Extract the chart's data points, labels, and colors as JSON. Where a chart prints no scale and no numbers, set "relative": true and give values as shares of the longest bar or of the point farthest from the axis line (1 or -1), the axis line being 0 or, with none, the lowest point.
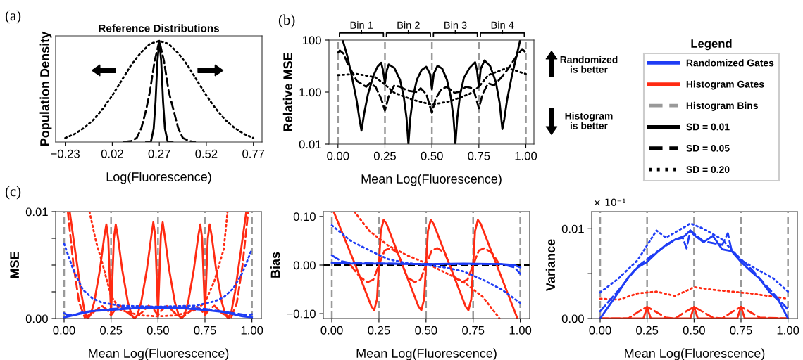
{
  "chart_data": [
    {
      "type": "line",
      "title": "Reference Distributions",
      "ylabel": "Population Density",
      "xlabel": "Log(Fluorescence)",
      "annotations": [
        "(a)"
      ],
      "relative": true,
      "xlim": [
        -0.281,
        0.816
      ],
      "xticks": [
        {
          "value": -0.23,
          "label": "−0.23"
        },
        0.02,
        0.27,
        0.52,
        0.77
      ],
      "series": [
        {
          "color": "#000000",
          "line_style": "solid",
          "x": [
            0.2,
            0.225,
            0.24,
            0.25,
            0.26,
            0.27,
            0.28,
            0.29,
            0.3,
            0.315,
            0.34
          ],
          "values": [
            0,
            0,
            0.13,
            0.4,
            0.8,
            1,
            0.8,
            0.4,
            0.13,
            0,
            0
          ]
        },
        {
          "color": "#000000",
          "line_style": "dashed",
          "x": [
            0.08,
            0.12,
            0.15,
            0.175,
            0.2,
            0.22,
            0.245,
            0.27,
            0.295,
            0.32,
            0.345,
            0.37,
            0.395,
            0.43,
            0.46
          ],
          "values": [
            0,
            0.01,
            0.04,
            0.14,
            0.32,
            0.5,
            0.8,
            1,
            0.8,
            0.5,
            0.32,
            0.14,
            0.04,
            0.01,
            0
          ]
        },
        {
          "color": "#000000",
          "line_style": "dotted",
          "x": [
            -0.23,
            -0.18,
            -0.13,
            -0.08,
            -0.03,
            0.02,
            0.07,
            0.12,
            0.17,
            0.22,
            0.27,
            0.32,
            0.37,
            0.42,
            0.47,
            0.52,
            0.57,
            0.62,
            0.67,
            0.72,
            0.77
          ],
          "values": [
            0.04,
            0.08,
            0.14,
            0.22,
            0.33,
            0.46,
            0.61,
            0.76,
            0.88,
            0.97,
            1,
            0.97,
            0.88,
            0.76,
            0.61,
            0.46,
            0.33,
            0.22,
            0.14,
            0.08,
            0.04
          ]
        }
      ]
    },
    {
      "type": "line",
      "log": true,
      "ylabel": "Relative MSE",
      "xlabel": "Mean Log(Fluorescence)",
      "annotations": [
        "(b)",
        "Bin 1",
        "Bin 2",
        "Bin 3",
        "Bin 4",
        "Randomized\nis better",
        "Histogram\nis better"
      ],
      "xlim": [
        -0.048,
        1.043
      ],
      "xticks": [
        {
          "value": 0,
          "label": "0.00"
        },
        0.25,
        {
          "value": 0.5,
          "label": "0.50"
        },
        0.75,
        {
          "value": 1,
          "label": "1.00"
        }
      ],
      "ylim": [
        0.01,
        100
      ],
      "yticks": [
        0.01,
        {
          "value": 1,
          "label": "1.00"
        },
        100
      ],
      "ref_lines": [
        {
          "axis": "x",
          "value": 0,
          "color": "#999999",
          "line_style": "dashed"
        },
        {
          "axis": "x",
          "value": 0.25,
          "color": "#999999",
          "line_style": "dashed"
        },
        {
          "axis": "x",
          "value": 0.5,
          "color": "#999999",
          "line_style": "dashed"
        },
        {
          "axis": "x",
          "value": 0.75,
          "color": "#999999",
          "line_style": "dashed"
        },
        {
          "axis": "x",
          "value": 1,
          "color": "#999999",
          "line_style": "dashed"
        }
      ],
      "series": [
        {
          "color": "#000000",
          "line_style": "solid",
          "x": [
            0.025,
            0.05,
            0.075,
            0.1,
            0.115,
            0.125,
            0.14,
            0.16,
            0.19,
            0.21,
            0.23,
            0.24,
            0.25,
            0.26,
            0.27,
            0.3,
            0.33,
            0.35,
            0.365,
            0.375,
            0.385,
            0.4,
            0.42,
            0.445,
            0.47,
            0.49,
            0.5,
            0.51,
            0.53,
            0.555,
            0.58,
            0.6,
            0.615,
            0.625,
            0.635,
            0.65,
            0.67,
            0.7,
            0.73,
            0.74,
            0.75,
            0.76,
            0.78,
            0.81,
            0.84,
            0.86,
            0.875,
            0.885,
            0.9,
            0.925,
            0.95,
            0.97
          ],
          "values": [
            100,
            24,
            3.7,
            0.45,
            0.085,
            0.033,
            0.16,
            0.85,
            4.5,
            9.4,
            13.4,
            6.9,
            2.2,
            6.9,
            11.6,
            8.5,
            3,
            0.69,
            0.1,
            0.01,
            0.1,
            0.69,
            3,
            7,
            9.4,
            5,
            1.3,
            5,
            10.4,
            8,
            3,
            0.69,
            0.1,
            0.01,
            0.1,
            0.8,
            3.5,
            8.5,
            14,
            7,
            1.6,
            8,
            16.5,
            10,
            2.5,
            0.4,
            0.038,
            0.09,
            0.5,
            4,
            24,
            100
          ]
        },
        {
          "color": "#000000",
          "line_style": "dashed",
          "x": [
            0,
            0.01,
            0.03,
            0.05,
            0.1,
            0.15,
            0.17,
            0.2,
            0.23,
            0.25,
            0.27,
            0.3,
            0.33,
            0.37,
            0.42,
            0.44,
            0.47,
            0.5,
            0.52,
            0.55,
            0.58,
            0.62,
            0.65,
            0.68,
            0.72,
            0.75,
            0.77,
            0.8,
            0.83,
            0.87,
            0.9,
            0.95,
            0.98,
            1.0
          ],
          "values": [
            33,
            40,
            30,
            13,
            2.7,
            1.6,
            2.2,
            1.6,
            0.56,
            0.195,
            0.69,
            1.8,
            1.6,
            1.15,
            1.0,
            1.4,
            0.85,
            0.16,
            0.56,
            1.3,
            1.6,
            0.94,
            1.04,
            1.6,
            1.4,
            0.24,
            0.85,
            2.2,
            1.8,
            3.7,
            6.9,
            24,
            45,
            33
          ]
        },
        {
          "color": "#000000",
          "line_style": "dotted",
          "x": [
            0,
            0.1,
            0.2,
            0.25,
            0.3,
            0.4,
            0.5,
            0.6,
            0.7,
            0.75,
            0.8,
            0.9,
            1.0
          ],
          "values": [
            4.5,
            5,
            3.7,
            1.95,
            0.94,
            0.5,
            0.33,
            0.45,
            0.85,
            1.6,
            4.5,
            8.5,
            5
          ]
        }
      ]
    },
    {
      "type": "other",
      "title": "Legend",
      "series": [
        {
          "name": "Randomized Gates",
          "color": "#1f3df5",
          "line_style": "solid"
        },
        {
          "name": "Histogram Gates",
          "color": "#ff2a12",
          "line_style": "solid"
        },
        {
          "name": "Histogram Bins",
          "color": "#999999",
          "line_style": "dashed"
        },
        {
          "name": "SD = 0.01",
          "color": "#000000",
          "line_style": "solid"
        },
        {
          "name": "SD = 0.05",
          "color": "#000000",
          "line_style": "dashed"
        },
        {
          "name": "SD = 0.20",
          "color": "#000000",
          "line_style": "dotted"
        }
      ]
    },
    {
      "type": "line",
      "ylabel": "MSE",
      "xlabel": "Mean Log(Fluorescence)",
      "annotations": [
        "(c)"
      ],
      "xlim": [
        -0.045,
        1.05
      ],
      "xticks": [
        {
          "value": 0,
          "label": "0.00"
        },
        0.25,
        {
          "value": 0.5,
          "label": "0.50"
        },
        0.75,
        {
          "value": 1,
          "label": "1.00"
        }
      ],
      "ylim": [
        0,
        0.01
      ],
      "yticks": [
        {
          "value": 0,
          "label": "0.00"
        },
        {
          "value": 0.0025,
          "label": null
        },
        {
          "value": 0.005,
          "label": null
        },
        {
          "value": 0.0075,
          "label": null
        },
        0.01
      ],
      "ref_lines": [
        {
          "axis": "x",
          "value": 0,
          "color": "#999999",
          "line_style": "dashed"
        },
        {
          "axis": "x",
          "value": 0.25,
          "color": "#999999",
          "line_style": "dashed"
        },
        {
          "axis": "x",
          "value": 0.5,
          "color": "#999999",
          "line_style": "dashed"
        },
        {
          "axis": "x",
          "value": 0.75,
          "color": "#999999",
          "line_style": "dashed"
        },
        {
          "axis": "x",
          "value": 1,
          "color": "#999999",
          "line_style": "dashed"
        }
      ],
      "series": [
        {
          "color": "#ff2a12",
          "line_style": "solid",
          "x": [
            0.03,
            0.06,
            0.09,
            0.11,
            0.125,
            0.14,
            0.16,
            0.19,
            0.215,
            0.225,
            0.235,
            0.25,
            0.265,
            0.275,
            0.285,
            0.31,
            0.34,
            0.36,
            0.375,
            0.39,
            0.41,
            0.44,
            0.465,
            0.475,
            0.485,
            0.5,
            0.515,
            0.525,
            0.535,
            0.56,
            0.59,
            0.61,
            0.625,
            0.64,
            0.66,
            0.69,
            0.715,
            0.725,
            0.735,
            0.75,
            0.765,
            0.775,
            0.785,
            0.81,
            0.84,
            0.86,
            0.875,
            0.89,
            0.91,
            0.94,
            0.97
          ],
          "values": [
            0.01,
            0.0062,
            0.0025,
            0.0006,
            0,
            0.0003,
            0.0015,
            0.0045,
            0.0078,
            0.0088,
            0.0075,
            0.0004,
            0.0075,
            0.0088,
            0.0078,
            0.0045,
            0.0015,
            0.0003,
            0,
            0.0003,
            0.0015,
            0.0045,
            0.0078,
            0.009,
            0.0078,
            0.0004,
            0.0078,
            0.009,
            0.0078,
            0.0045,
            0.0015,
            0.0003,
            0,
            0.0003,
            0.0015,
            0.0045,
            0.0078,
            0.0088,
            0.0075,
            0.0004,
            0.0075,
            0.0088,
            0.0078,
            0.0045,
            0.0015,
            0.0003,
            0,
            0.0006,
            0.0025,
            0.0062,
            0.01
          ]
        },
        {
          "color": "#ff2a12",
          "line_style": "dashed",
          "x": [
            0.02,
            0.05,
            0.08,
            0.11,
            0.15,
            0.2,
            0.23,
            0.25,
            0.27,
            0.3,
            0.34,
            0.375,
            0.41,
            0.45,
            0.48,
            0.5,
            0.52,
            0.55,
            0.59,
            0.625,
            0.66,
            0.7,
            0.73,
            0.75,
            0.77,
            0.8,
            0.84,
            0.89,
            0.92,
            0.95,
            0.98
          ],
          "values": [
            0.01,
            0.005,
            0.0015,
            0.0001,
            0.0005,
            0.0012,
            0.0008,
            0.0003,
            0.0008,
            0.0012,
            0.0005,
            0.0001,
            0.0005,
            0.0012,
            0.0008,
            0.0003,
            0.0008,
            0.0012,
            0.0005,
            0.0001,
            0.0005,
            0.0012,
            0.0008,
            0.0003,
            0.0008,
            0.0012,
            0.0005,
            0.0001,
            0.0015,
            0.005,
            0.01
          ]
        },
        {
          "color": "#ff2a12",
          "line_style": "dotted",
          "x": [
            0.135,
            0.17,
            0.2,
            0.25,
            0.3,
            0.4,
            0.5,
            0.6,
            0.7,
            0.75,
            0.8,
            0.85,
            0.87
          ],
          "values": [
            0.01,
            0.0072,
            0.0054,
            0.0021,
            0.0008,
            0.0003,
            0.0002,
            0.0003,
            0.0008,
            0.0015,
            0.0035,
            0.0065,
            0.01
          ]
        },
        {
          "color": "#1f3df5",
          "line_style": "solid",
          "x": [
            0,
            0.05,
            0.1,
            0.15,
            0.25,
            0.4,
            0.5,
            0.6,
            0.75,
            0.85,
            0.9,
            0.95,
            1.0
          ],
          "values": [
            0.0001,
            0.0003,
            0.0005,
            0.0007,
            0.0008,
            0.001,
            0.001,
            0.001,
            0.0008,
            0.0006,
            0.0004,
            0.0002,
            0.0001
          ]
        },
        {
          "color": "#1f3df5",
          "line_style": "dashed",
          "x": [
            0,
            0.02,
            0.05,
            0.1,
            0.25,
            0.5,
            0.75,
            0.9,
            0.98,
            1.0
          ],
          "values": [
            0.0005,
            0.0003,
            0.0003,
            0.0006,
            0.0009,
            0.0011,
            0.0009,
            0.0005,
            0.0003,
            0.0004
          ]
        },
        {
          "color": "#1f3df5",
          "line_style": "dotted",
          "x": [
            0,
            0.05,
            0.1,
            0.15,
            0.2,
            0.3,
            0.5,
            0.7,
            0.8,
            0.85,
            0.9,
            0.95,
            1.0
          ],
          "values": [
            0.007,
            0.0045,
            0.0027,
            0.0019,
            0.0015,
            0.0012,
            0.0011,
            0.0012,
            0.0016,
            0.002,
            0.0028,
            0.0043,
            0.0065
          ]
        }
      ]
    },
    {
      "type": "line",
      "ylabel": "Bias",
      "xlabel": "Mean Log(Fluorescence)",
      "xlim": [
        -0.045,
        1.05
      ],
      "xticks": [
        {
          "value": 0,
          "label": "0.00"
        },
        0.25,
        {
          "value": 0.5,
          "label": "0.50"
        },
        0.75,
        {
          "value": 1,
          "label": "1.00"
        }
      ],
      "ylim": [
        -0.11,
        0.11
      ],
      "yticks": [
        {
          "value": -0.1,
          "label": "−0.10"
        },
        {
          "value": 0,
          "label": "0.00"
        },
        {
          "value": 0.1,
          "label": "0.10"
        }
      ],
      "ref_lines": [
        {
          "axis": "x",
          "value": 0,
          "color": "#999999",
          "line_style": "dashed"
        },
        {
          "axis": "x",
          "value": 0.25,
          "color": "#999999",
          "line_style": "dashed"
        },
        {
          "axis": "x",
          "value": 0.5,
          "color": "#999999",
          "line_style": "dashed"
        },
        {
          "axis": "x",
          "value": 0.75,
          "color": "#999999",
          "line_style": "dashed"
        },
        {
          "axis": "x",
          "value": 1,
          "color": "#999999",
          "line_style": "dashed"
        },
        {
          "axis": "y",
          "value": 0,
          "color": "#000000",
          "line_style": "dashed"
        }
      ],
      "series": [
        {
          "color": "#ff2a12",
          "line_style": "solid",
          "x": [
            0.01,
            0.125,
            0.21,
            0.225,
            0.24,
            0.25,
            0.26,
            0.275,
            0.29,
            0.375,
            0.46,
            0.475,
            0.49,
            0.5,
            0.51,
            0.525,
            0.54,
            0.625,
            0.71,
            0.725,
            0.74,
            0.75,
            0.76,
            0.775,
            0.79,
            0.875,
            0.985
          ],
          "values": [
            0.11,
            0,
            -0.085,
            -0.093,
            -0.07,
            0,
            0.07,
            0.093,
            0.085,
            0,
            -0.085,
            -0.093,
            -0.07,
            0,
            0.07,
            0.093,
            0.085,
            0,
            -0.085,
            -0.093,
            -0.07,
            0,
            0.07,
            0.093,
            0.085,
            0,
            -0.11
          ]
        },
        {
          "color": "#ff2a12",
          "line_style": "dashed",
          "x": [
            0.1,
            0.15,
            0.19,
            0.22,
            0.25,
            0.28,
            0.31,
            0.35,
            0.375,
            0.4,
            0.44,
            0.47,
            0.5,
            0.53,
            0.56,
            0.6,
            0.625,
            0.65,
            0.69,
            0.72,
            0.75,
            0.78,
            0.81,
            0.85,
            0.9
          ],
          "values": [
            0.0,
            -0.025,
            -0.035,
            -0.03,
            0,
            0.03,
            0.035,
            0.025,
            0,
            -0.025,
            -0.035,
            -0.03,
            0,
            0.03,
            0.035,
            0.025,
            0,
            -0.025,
            -0.035,
            -0.03,
            0,
            0.03,
            0.035,
            0.025,
            -0.005
          ]
        },
        {
          "color": "#ff2a12",
          "line_style": "dotted",
          "x": [
            0.12,
            0.2,
            0.3,
            0.4,
            0.5,
            0.6,
            0.7,
            0.8,
            0.89
          ],
          "values": [
            0.11,
            0.07,
            0.04,
            0.02,
            0.004,
            -0.015,
            -0.035,
            -0.065,
            -0.11
          ]
        },
        {
          "color": "#1f3df5",
          "line_style": "solid",
          "x": [
            0,
            0.1,
            0.3,
            0.5,
            0.7,
            0.9,
            0.97,
            1.0
          ],
          "values": [
            0.005,
            0.003,
            0.003,
            0.002,
            0.003,
            0.002,
            0.0,
            -0.005
          ]
        },
        {
          "color": "#1f3df5",
          "line_style": "dashed",
          "x": [
            0,
            0.05,
            0.1,
            0.5,
            0.9,
            0.97,
            1.0
          ],
          "values": [
            0.02,
            0.008,
            0.004,
            0.002,
            0.002,
            -0.005,
            -0.018
          ]
        },
        {
          "color": "#1f3df5",
          "line_style": "dotted",
          "x": [
            0,
            0.1,
            0.2,
            0.3,
            0.4,
            0.5,
            0.6,
            0.7,
            0.8,
            0.9,
            1.0
          ],
          "values": [
            0.082,
            0.05,
            0.03,
            0.012,
            0.004,
            0,
            -0.005,
            -0.013,
            -0.03,
            -0.05,
            -0.078
          ]
        }
      ]
    },
    {
      "type": "line",
      "ylabel": "Variance",
      "xlabel": "Mean Log(Fluorescence)",
      "annotations": [
        "× 10⁻¹"
      ],
      "xlim": [
        -0.045,
        1.05
      ],
      "xticks": [
        {
          "value": 0,
          "label": "0.00"
        },
        0.25,
        {
          "value": 0.5,
          "label": "0.50"
        },
        0.75,
        {
          "value": 1,
          "label": "1.00"
        }
      ],
      "ylim": [
        0,
        0.0119
      ],
      "yticks": [
        {
          "value": 0,
          "label": "0.00"
        },
        {
          "value": 0.005,
          "label": null
        },
        0.01
      ],
      "ref_lines": [
        {
          "axis": "x",
          "value": 0,
          "color": "#999999",
          "line_style": "dashed"
        },
        {
          "axis": "x",
          "value": 0.25,
          "color": "#999999",
          "line_style": "dashed"
        },
        {
          "axis": "x",
          "value": 0.5,
          "color": "#999999",
          "line_style": "dashed"
        },
        {
          "axis": "x",
          "value": 0.75,
          "color": "#999999",
          "line_style": "dashed"
        },
        {
          "axis": "x",
          "value": 1,
          "color": "#999999",
          "line_style": "dashed"
        }
      ],
      "series": [
        {
          "color": "#ff2a12",
          "line_style": "solid",
          "x": [
            0,
            0.23,
            0.25,
            0.27,
            0.48,
            0.5,
            0.52,
            0.73,
            0.75,
            0.77,
            1.0
          ],
          "values": [
            0,
            0,
            0.0012,
            0,
            0,
            0.0013,
            0,
            0,
            0.0013,
            0,
            0
          ]
        },
        {
          "color": "#ff2a12",
          "line_style": "dashed",
          "x": [
            0,
            0.15,
            0.2,
            0.25,
            0.3,
            0.35,
            0.4,
            0.45,
            0.5,
            0.55,
            0.6,
            0.65,
            0.7,
            0.75,
            0.8,
            0.85,
            1.0
          ],
          "values": [
            0,
            0,
            0.0007,
            0.0013,
            0.0007,
            0.0001,
            0,
            0.0007,
            0.0013,
            0.0007,
            0.0001,
            0,
            0.0007,
            0.0013,
            0.0007,
            0.0001,
            0
          ]
        },
        {
          "color": "#ff2a12",
          "line_style": "dotted",
          "x": [
            0,
            0.1,
            0.2,
            0.3,
            0.4,
            0.5,
            0.6,
            0.7,
            0.8,
            0.9,
            1.0
          ],
          "values": [
            0.0022,
            0.0021,
            0.0028,
            0.003,
            0.0025,
            0.0035,
            0.0032,
            0.003,
            0.0028,
            0.0025,
            0.0022
          ]
        },
        {
          "color": "#1f3df5",
          "line_style": "solid",
          "x": [
            0,
            0.05,
            0.1,
            0.15,
            0.2,
            0.25,
            0.3,
            0.35,
            0.4,
            0.45,
            0.48,
            0.5,
            0.55,
            0.6,
            0.65,
            0.7,
            0.75,
            0.8,
            0.85,
            0.9,
            0.95,
            1.0
          ],
          "values": [
            0,
            0.0015,
            0.003,
            0.0046,
            0.0057,
            0.0063,
            0.0073,
            0.0082,
            0.0088,
            0.0092,
            0.0098,
            0.0093,
            0.0085,
            0.0092,
            0.0077,
            0.0075,
            0.0063,
            0.0053,
            0.0044,
            0.003,
            0.002,
            0
          ]
        },
        {
          "color": "#1f3df5",
          "line_style": "dashed",
          "x": [
            0,
            0.1,
            0.2,
            0.3,
            0.4,
            0.44,
            0.46,
            0.48,
            0.55,
            0.65,
            0.68,
            0.69,
            0.7,
            0.8,
            0.9,
            1.0
          ],
          "values": [
            0.0008,
            0.0032,
            0.0058,
            0.0074,
            0.0088,
            0.009,
            0.0078,
            0.0098,
            0.0086,
            0.0082,
            0.0095,
            0.0085,
            0.0076,
            0.0056,
            0.0033,
            0.001
          ]
        },
        {
          "color": "#1f3df5",
          "line_style": "dotted",
          "x": [
            0,
            0.1,
            0.2,
            0.3,
            0.35,
            0.45,
            0.48,
            0.55,
            0.65,
            0.75,
            0.85,
            0.92,
            1.0
          ],
          "values": [
            0.0029,
            0.0045,
            0.0065,
            0.0098,
            0.009,
            0.0102,
            0.0106,
            0.01,
            0.0088,
            0.0065,
            0.0053,
            0.0045,
            0.003
          ]
        }
      ]
    }
  ]
}
